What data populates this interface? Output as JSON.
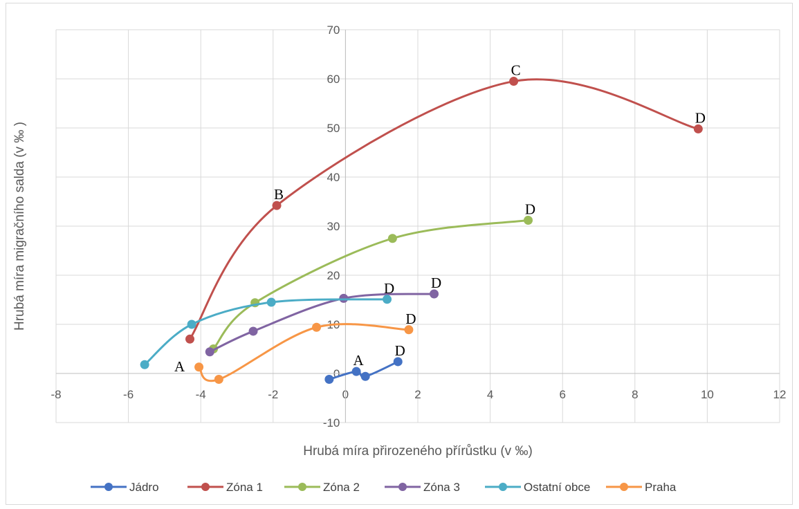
{
  "chart_data": {
    "type": "scatter",
    "xlabel": "Hrubá míra přirozeného přírůstku (v ‰)",
    "ylabel": "Hrubá míra migračního salda (v ‰ )",
    "xlim": [
      -8,
      12
    ],
    "ylim": [
      -10,
      70
    ],
    "xticks": [
      "-8",
      "-6",
      "-4",
      "-2",
      "0",
      "2",
      "4",
      "6",
      "8",
      "10",
      "12"
    ],
    "yticks": [
      "-10",
      "0",
      "10",
      "20",
      "30",
      "40",
      "50",
      "60",
      "70"
    ],
    "grid": true,
    "legend_position": "bottom",
    "smooth_lines": true,
    "series": [
      {
        "name": "Jádro",
        "color": "#4472c4",
        "points": [
          {
            "x": -0.45,
            "y": -1.2,
            "label": ""
          },
          {
            "x": 0.3,
            "y": 0.4,
            "label": "A"
          },
          {
            "x": 0.55,
            "y": -0.6,
            "label": ""
          },
          {
            "x": 1.45,
            "y": 2.4,
            "label": "D"
          }
        ]
      },
      {
        "name": "Zóna 1",
        "color": "#c0504d",
        "points": [
          {
            "x": -4.3,
            "y": 7.0,
            "label": ""
          },
          {
            "x": -1.9,
            "y": 34.2,
            "label": "B"
          },
          {
            "x": 4.65,
            "y": 59.5,
            "label": "C"
          },
          {
            "x": 9.75,
            "y": 49.8,
            "label": "D"
          }
        ]
      },
      {
        "name": "Zóna 2",
        "color": "#9bbb59",
        "points": [
          {
            "x": -3.65,
            "y": 5.0,
            "label": ""
          },
          {
            "x": -2.5,
            "y": 14.4,
            "label": ""
          },
          {
            "x": 1.3,
            "y": 27.5,
            "label": ""
          },
          {
            "x": 5.05,
            "y": 31.2,
            "label": "D"
          }
        ]
      },
      {
        "name": "Zóna 3",
        "color": "#8064a2",
        "points": [
          {
            "x": -3.75,
            "y": 4.4,
            "label": ""
          },
          {
            "x": -2.55,
            "y": 8.6,
            "label": ""
          },
          {
            "x": -0.05,
            "y": 15.3,
            "label": ""
          },
          {
            "x": 2.45,
            "y": 16.2,
            "label": "D"
          }
        ]
      },
      {
        "name": "Ostatní obce",
        "color": "#4bacc6",
        "points": [
          {
            "x": -5.55,
            "y": 1.8,
            "label": ""
          },
          {
            "x": -4.25,
            "y": 10.0,
            "label": ""
          },
          {
            "x": -2.05,
            "y": 14.5,
            "label": ""
          },
          {
            "x": 1.15,
            "y": 15.1,
            "label": "D"
          }
        ]
      },
      {
        "name": "Praha",
        "color": "#f79646",
        "points": [
          {
            "x": -4.05,
            "y": 1.3,
            "label": "A"
          },
          {
            "x": -3.5,
            "y": -1.2,
            "label": ""
          },
          {
            "x": -0.8,
            "y": 9.4,
            "label": ""
          },
          {
            "x": 1.75,
            "y": 8.9,
            "label": "D"
          }
        ]
      }
    ]
  }
}
